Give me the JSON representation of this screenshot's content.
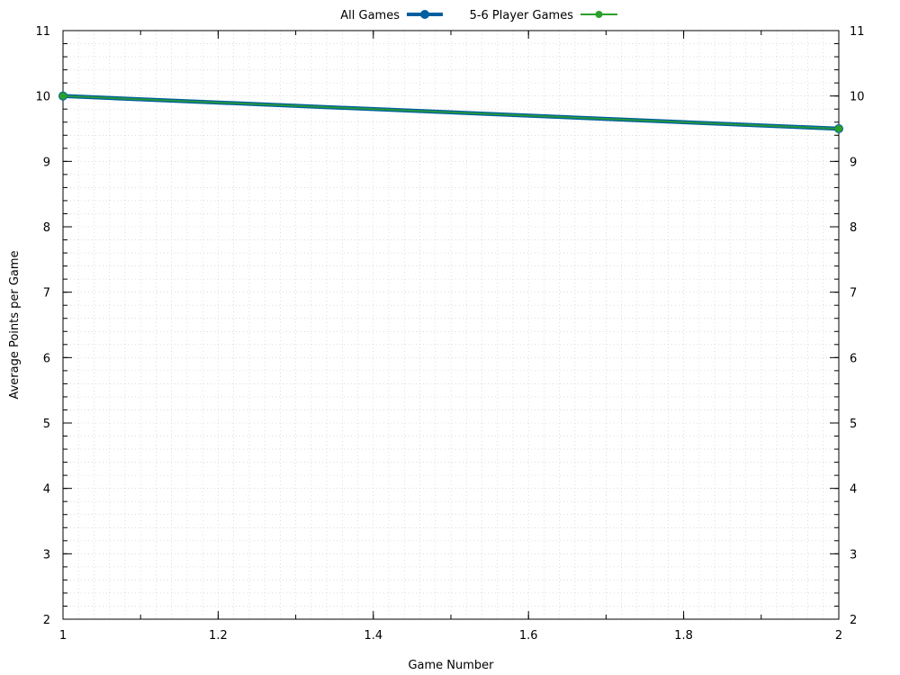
{
  "chart_data": {
    "type": "line",
    "title": "",
    "xlabel": "Game Number",
    "ylabel": "Average Points per Game",
    "xlim": [
      1,
      2
    ],
    "ylim": [
      2,
      11
    ],
    "x_ticks": [
      "1",
      "1.2",
      "1.4",
      "1.6",
      "1.8",
      "2"
    ],
    "y_ticks": [
      "2",
      "3",
      "4",
      "5",
      "6",
      "7",
      "8",
      "9",
      "10",
      "11"
    ],
    "mirror_y_axis": true,
    "grid": true,
    "legend_position": "top-center",
    "series": [
      {
        "name": "All Games",
        "x": [
          1,
          2
        ],
        "y": [
          10,
          9.5
        ],
        "color": "#005f9e"
      },
      {
        "name": "5-6 Player Games",
        "x": [
          1,
          2
        ],
        "y": [
          10,
          9.5
        ],
        "color": "#2ca02c"
      }
    ]
  }
}
